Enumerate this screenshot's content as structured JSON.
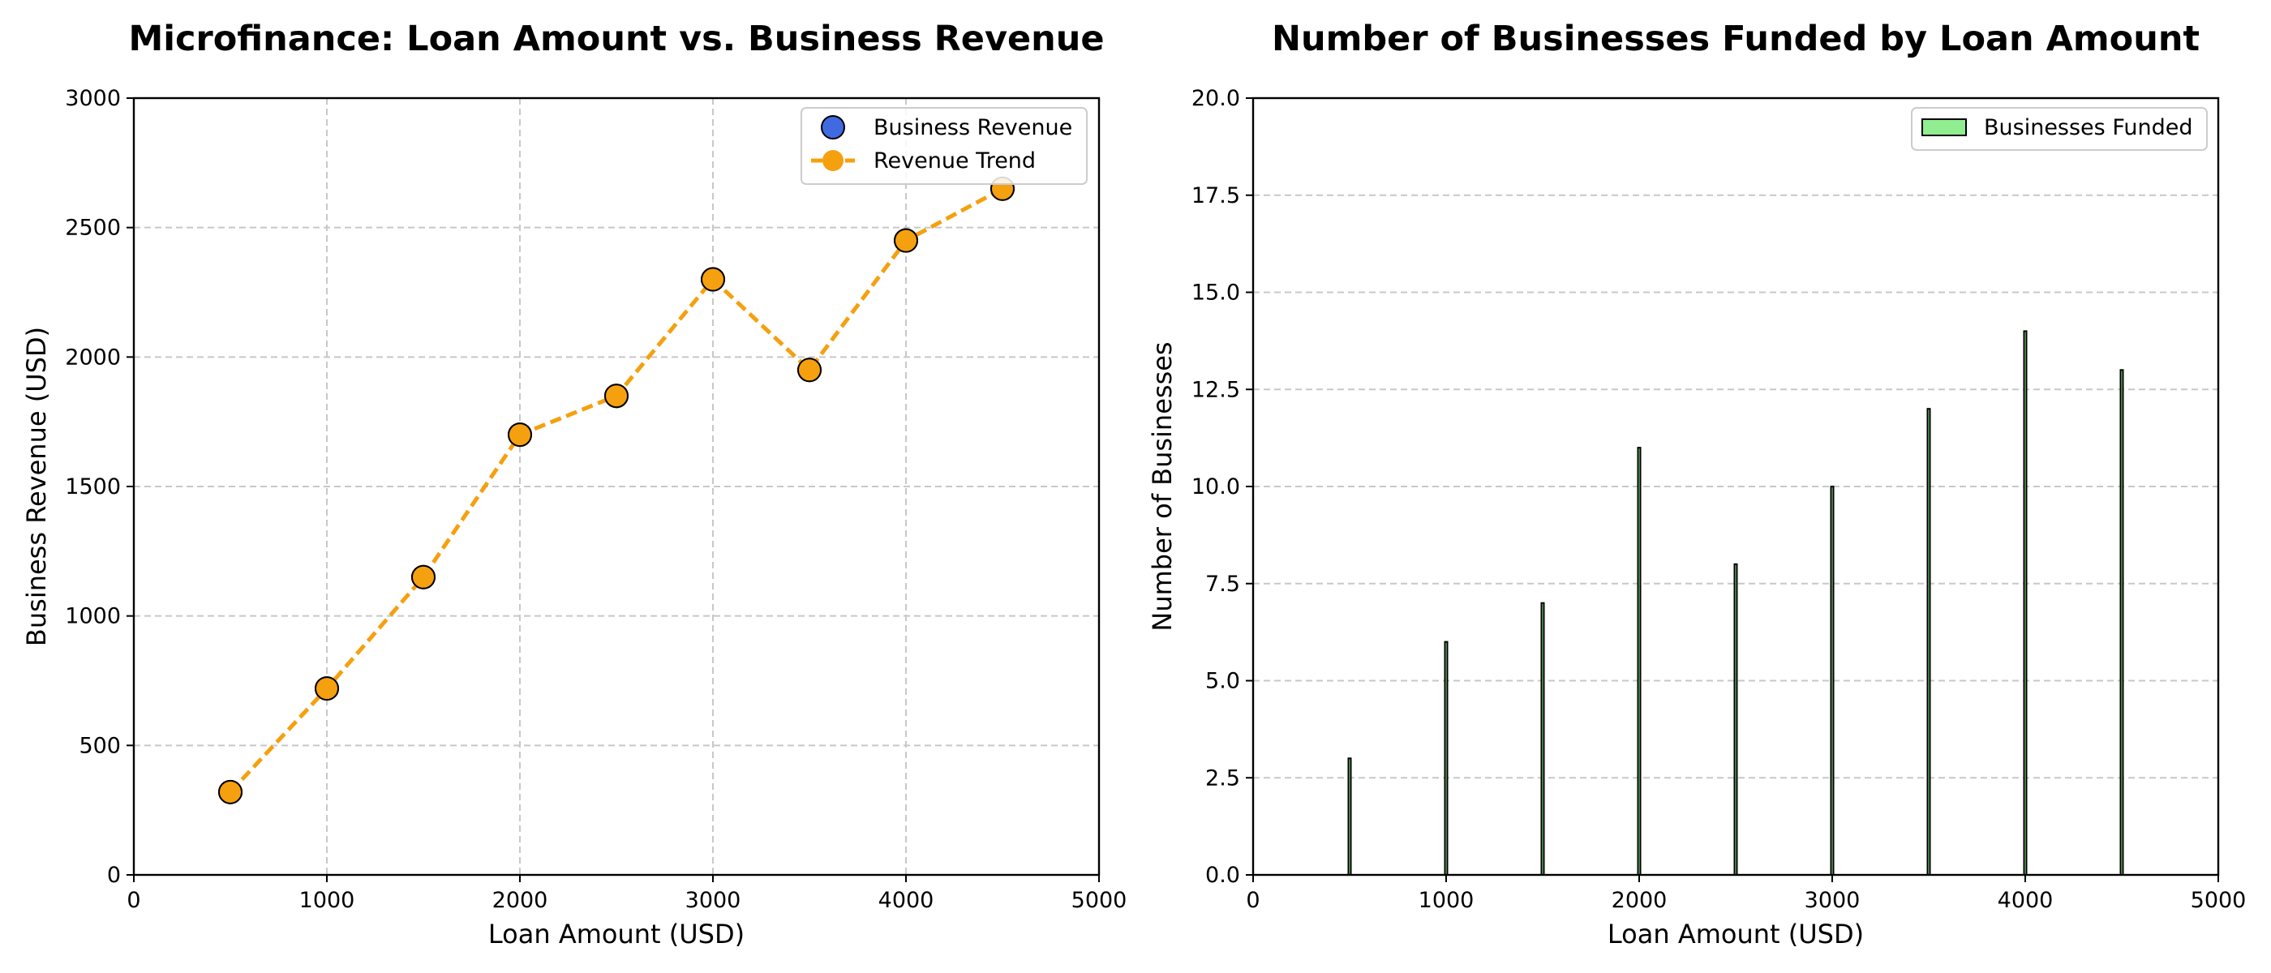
{
  "chart_data": [
    {
      "type": "scatter",
      "title": "Microfinance: Loan Amount vs. Business Revenue",
      "xlabel": "Loan Amount (USD)",
      "ylabel": "Business Revenue (USD)",
      "xlim": [
        0,
        5000
      ],
      "ylim": [
        0,
        3000
      ],
      "xticks": [
        0,
        1000,
        2000,
        3000,
        4000,
        5000
      ],
      "yticks": [
        0,
        500,
        1000,
        1500,
        2000,
        2500,
        3000
      ],
      "grid": true,
      "legend_position": "top-right",
      "x": [
        500,
        1000,
        1500,
        2000,
        2500,
        3000,
        3500,
        4000,
        4500
      ],
      "series": [
        {
          "name": "Business Revenue",
          "kind": "scatter",
          "color": "#4169e1",
          "values": [
            320,
            720,
            1150,
            1700,
            1850,
            2300,
            1950,
            2450,
            2650
          ]
        },
        {
          "name": "Revenue Trend",
          "kind": "line-dashed-markers",
          "color": "#f5a00f",
          "values": [
            320,
            720,
            1150,
            1700,
            1850,
            2300,
            1950,
            2450,
            2650
          ]
        }
      ]
    },
    {
      "type": "bar",
      "title": "Number of Businesses Funded by Loan Amount",
      "xlabel": "Loan Amount (USD)",
      "ylabel": "Number of Businesses",
      "xlim": [
        0,
        5000
      ],
      "ylim": [
        0,
        20
      ],
      "xticks": [
        0,
        1000,
        2000,
        3000,
        4000,
        5000
      ],
      "yticks": [
        "0.0",
        "2.5",
        "5.0",
        "7.5",
        "10.0",
        "12.5",
        "15.0",
        "17.5",
        "20.0"
      ],
      "grid": "y",
      "legend_position": "top-right",
      "x": [
        500,
        1000,
        1500,
        2000,
        2500,
        3000,
        3500,
        4000,
        4500
      ],
      "series": [
        {
          "name": "Businesses Funded",
          "color": "#90ee90",
          "values": [
            3,
            6,
            7,
            11,
            8,
            10,
            12,
            14,
            13
          ]
        }
      ]
    }
  ]
}
